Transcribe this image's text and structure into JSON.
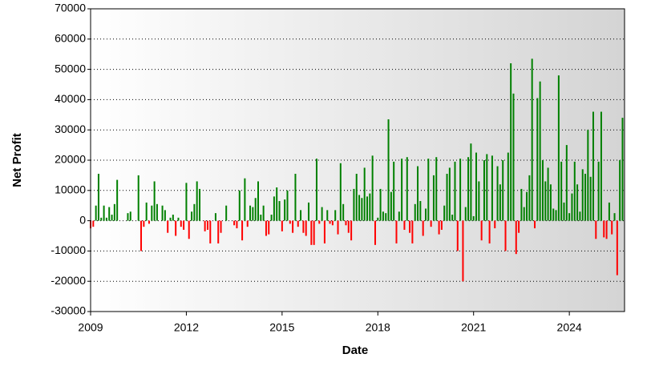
{
  "chart_data": {
    "type": "bar",
    "x_label": "Date",
    "y_label": "Net Profit",
    "xlim": [
      2009,
      2025.73
    ],
    "xticks": [
      2009,
      2012,
      2015,
      2018,
      2021,
      2024
    ],
    "ylim": [
      -30000,
      70000
    ],
    "yticks": [
      -30000,
      -20000,
      -10000,
      0,
      10000,
      20000,
      30000,
      40000,
      50000,
      60000,
      70000
    ],
    "grid": true,
    "positive_color": "#008000",
    "negative_color": "#ff0000",
    "x": [
      2009.0,
      2009.083,
      2009.167,
      2009.25,
      2009.333,
      2009.417,
      2009.5,
      2009.583,
      2009.667,
      2009.75,
      2009.833,
      2009.917,
      2010.0,
      2010.083,
      2010.167,
      2010.25,
      2010.333,
      2010.417,
      2010.5,
      2010.583,
      2010.667,
      2010.75,
      2010.833,
      2010.917,
      2011.0,
      2011.083,
      2011.167,
      2011.25,
      2011.333,
      2011.417,
      2011.5,
      2011.583,
      2011.667,
      2011.75,
      2011.833,
      2011.917,
      2012.0,
      2012.083,
      2012.167,
      2012.25,
      2012.333,
      2012.417,
      2012.5,
      2012.583,
      2012.667,
      2012.75,
      2012.833,
      2012.917,
      2013.0,
      2013.083,
      2013.167,
      2013.25,
      2013.333,
      2013.417,
      2013.5,
      2013.583,
      2013.667,
      2013.75,
      2013.833,
      2013.917,
      2014.0,
      2014.083,
      2014.167,
      2014.25,
      2014.333,
      2014.417,
      2014.5,
      2014.583,
      2014.667,
      2014.75,
      2014.833,
      2014.917,
      2015.0,
      2015.083,
      2015.167,
      2015.25,
      2015.333,
      2015.417,
      2015.5,
      2015.583,
      2015.667,
      2015.75,
      2015.833,
      2015.917,
      2016.0,
      2016.083,
      2016.167,
      2016.25,
      2016.333,
      2016.417,
      2016.5,
      2016.583,
      2016.667,
      2016.75,
      2016.833,
      2016.917,
      2017.0,
      2017.083,
      2017.167,
      2017.25,
      2017.333,
      2017.417,
      2017.5,
      2017.583,
      2017.667,
      2017.75,
      2017.833,
      2017.917,
      2018.0,
      2018.083,
      2018.167,
      2018.25,
      2018.333,
      2018.417,
      2018.5,
      2018.583,
      2018.667,
      2018.75,
      2018.833,
      2018.917,
      2019.0,
      2019.083,
      2019.167,
      2019.25,
      2019.333,
      2019.417,
      2019.5,
      2019.583,
      2019.667,
      2019.75,
      2019.833,
      2019.917,
      2020.0,
      2020.083,
      2020.167,
      2020.25,
      2020.333,
      2020.417,
      2020.5,
      2020.583,
      2020.667,
      2020.75,
      2020.833,
      2020.917,
      2021.0,
      2021.083,
      2021.167,
      2021.25,
      2021.333,
      2021.417,
      2021.5,
      2021.583,
      2021.667,
      2021.75,
      2021.833,
      2021.917,
      2022.0,
      2022.083,
      2022.167,
      2022.25,
      2022.333,
      2022.417,
      2022.5,
      2022.583,
      2022.667,
      2022.75,
      2022.833,
      2022.917,
      2023.0,
      2023.083,
      2023.167,
      2023.25,
      2023.333,
      2023.417,
      2023.5,
      2023.583,
      2023.667,
      2023.75,
      2023.833,
      2023.917,
      2024.0,
      2024.083,
      2024.167,
      2024.25,
      2024.333,
      2024.417,
      2024.5,
      2024.583,
      2024.667,
      2024.75,
      2024.833,
      2024.917,
      2025.0,
      2025.083,
      2025.167,
      2025.25,
      2025.333,
      2025.417,
      2025.5,
      2025.583,
      2025.667
    ],
    "values": [
      -2500,
      -2000,
      5000,
      15500,
      1000,
      5000,
      1000,
      4500,
      2000,
      5500,
      13500,
      0,
      0,
      0,
      2500,
      3000,
      0,
      0,
      15000,
      -10000,
      -2000,
      6000,
      -1000,
      5000,
      13000,
      5500,
      0,
      5000,
      3500,
      -4000,
      1000,
      2000,
      -5000,
      1000,
      -2000,
      -3000,
      12500,
      -6000,
      3000,
      5500,
      13000,
      10500,
      0,
      -3500,
      -3000,
      -7500,
      0,
      2500,
      -7500,
      -4000,
      0,
      5000,
      0,
      0,
      -1500,
      -2500,
      10000,
      -6500,
      14000,
      -2000,
      5000,
      4500,
      7500,
      13000,
      2000,
      5000,
      -5000,
      -4500,
      2000,
      8000,
      11000,
      6500,
      -3500,
      7000,
      10000,
      -1000,
      -4000,
      15500,
      -2000,
      3500,
      -4000,
      -5000,
      6000,
      -8000,
      -8000,
      20500,
      -1000,
      4500,
      -7500,
      3500,
      -1000,
      -1500,
      3500,
      -4500,
      19000,
      5500,
      -1500,
      -4000,
      -6500,
      10500,
      15500,
      8500,
      7500,
      17500,
      8000,
      9000,
      21500,
      -8000,
      1000,
      10500,
      3000,
      2500,
      33500,
      9500,
      19500,
      -7500,
      3000,
      20500,
      -3000,
      21000,
      -4000,
      -7500,
      5500,
      18000,
      6500,
      -5000,
      4000,
      20500,
      -2000,
      15000,
      21000,
      -4500,
      -3000,
      5000,
      15500,
      17500,
      2000,
      19500,
      -10000,
      20500,
      -20000,
      4500,
      21000,
      25500,
      1500,
      22500,
      13000,
      -6500,
      20000,
      22000,
      -7500,
      21500,
      -2500,
      18000,
      12000,
      20000,
      -10000,
      22500,
      52000,
      42000,
      -11000,
      -4000,
      10500,
      4500,
      9500,
      15000,
      53500,
      -2500,
      40500,
      46000,
      20000,
      13000,
      17500,
      12000,
      4000,
      3500,
      48000,
      19500,
      6000,
      25000,
      2500,
      9000,
      19500,
      12000,
      3000,
      17000,
      15500,
      30000,
      14500,
      36000,
      -6000,
      19500,
      36000,
      -5500,
      -6000,
      6000,
      -4500,
      2500,
      -18000,
      20000,
      34000
    ]
  }
}
